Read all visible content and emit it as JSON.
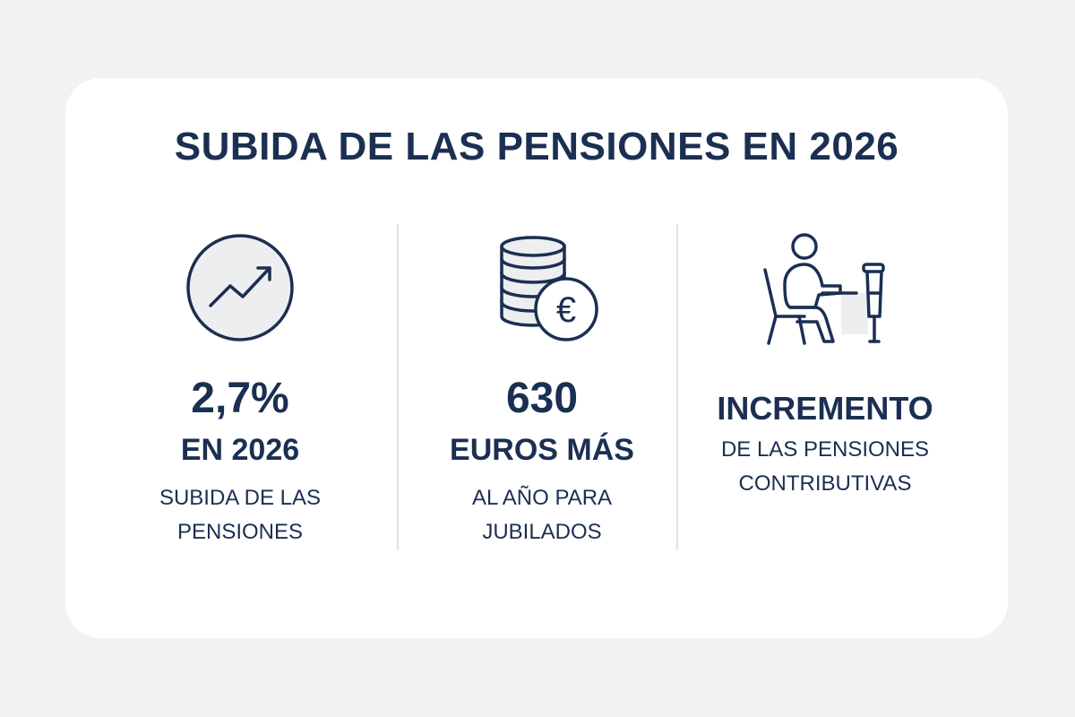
{
  "title": "SUBIDA DE LAS PENSIONES EN 2026",
  "colors": {
    "background": "#f2f2f2",
    "card": "#ffffff",
    "text": "#1b2f52",
    "divider": "#e0e2e6",
    "icon_fill": "#edeef0"
  },
  "columns": [
    {
      "icon": "trend-up-icon",
      "value": "2,7%",
      "headline": "EN 2026",
      "desc_line1": "SUBIDA DE LAS",
      "desc_line2": "PENSIONES"
    },
    {
      "icon": "euro-coins-icon",
      "value": "630",
      "headline": "EUROS MÁS",
      "desc_line1": "AL AÑO PARA",
      "desc_line2": "JUBILADOS"
    },
    {
      "icon": "retiree-crutch-icon",
      "value": "INCREMENTO",
      "desc_line1": "DE LAS PENSIONES",
      "desc_line2": "CONTRIBUTIVAS"
    }
  ]
}
